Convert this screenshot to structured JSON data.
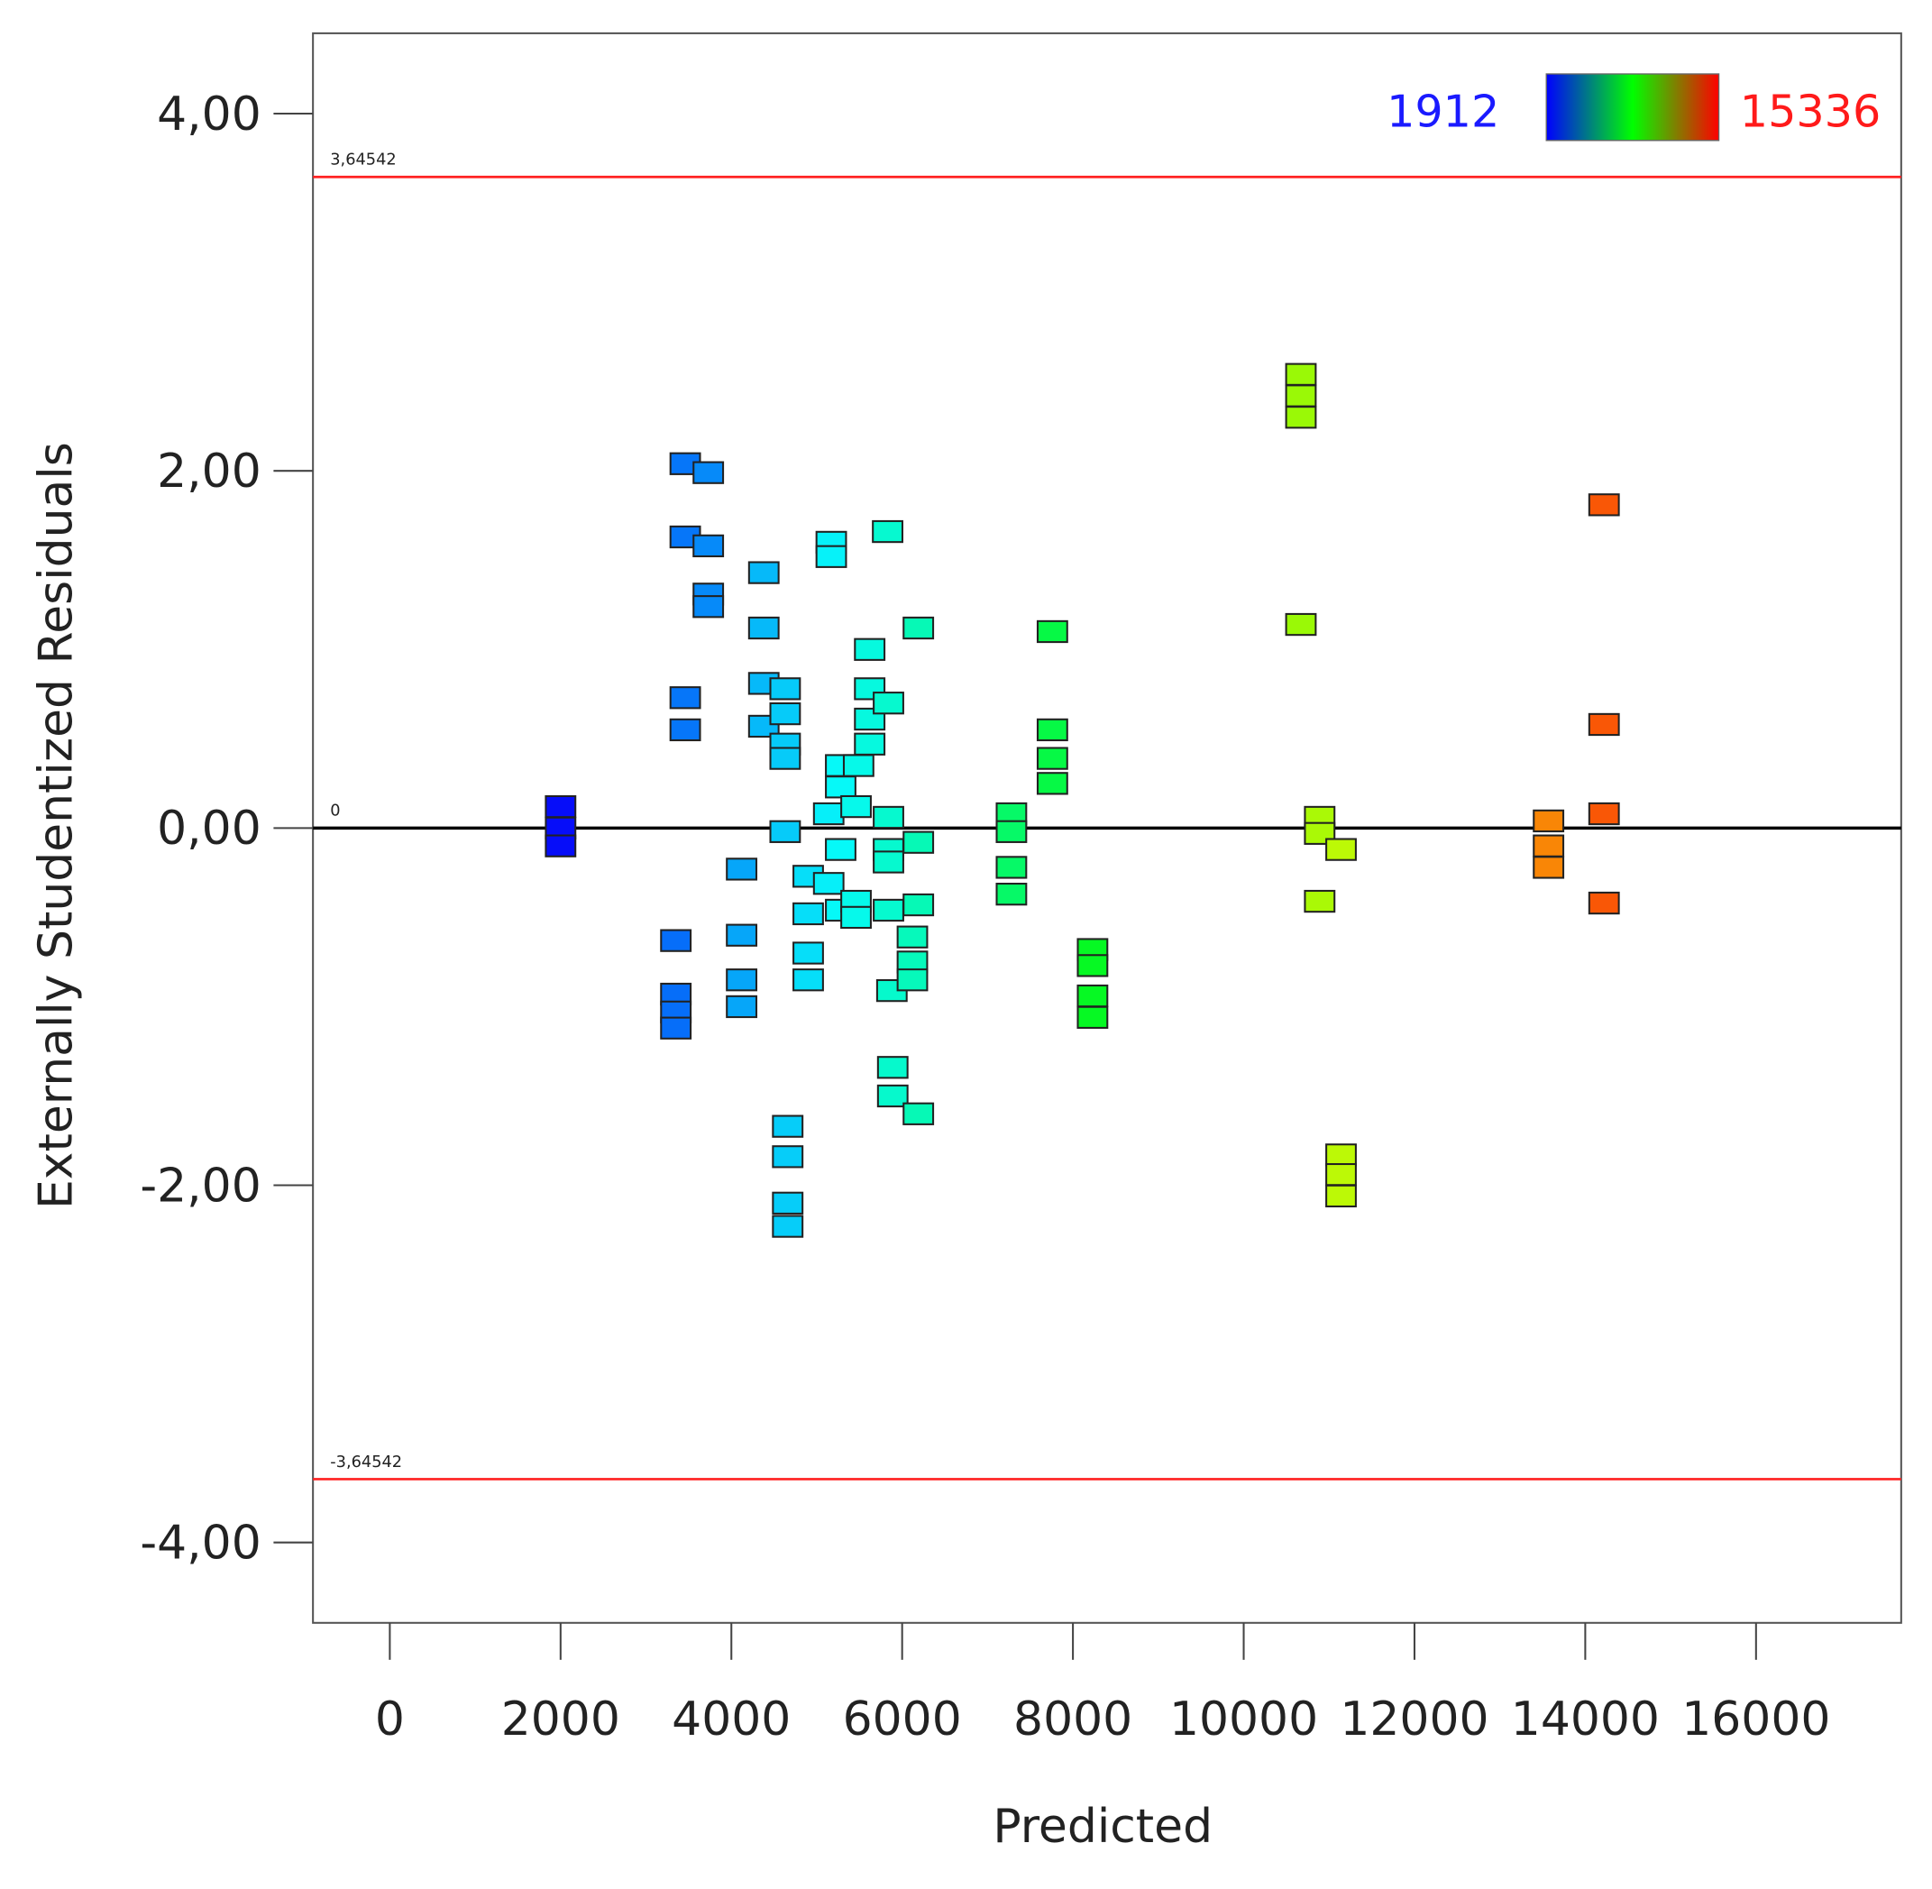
{
  "chart_data": {
    "type": "scatter",
    "title": "",
    "xlabel": "Predicted",
    "ylabel": "Externally Studentized Residuals",
    "xlim": [
      -900,
      17700
    ],
    "ylim": [
      -4.45,
      4.45
    ],
    "x_ticks": [
      0,
      2000,
      4000,
      6000,
      8000,
      10000,
      12000,
      14000,
      16000
    ],
    "x_tick_labels": [
      "0",
      "2000",
      "4000",
      "6000",
      "8000",
      "10000",
      "12000",
      "14000",
      "16000"
    ],
    "y_ticks": [
      4,
      2,
      0,
      -2,
      -4
    ],
    "y_tick_labels": [
      "4,00",
      "2,00",
      "0,00",
      "-2,00",
      "-4,00"
    ],
    "grid": false,
    "marker": "square",
    "reference_lines": [
      {
        "value": 3.64542,
        "label": "3,64542",
        "color": "#ff2020"
      },
      {
        "value": 0,
        "label": "0",
        "color": "#000000"
      },
      {
        "value": -3.64542,
        "label": "-3,64542",
        "color": "#ff2020"
      }
    ],
    "color_scale": {
      "min_label": "1912",
      "max_label": "15336",
      "min": 1912,
      "max": 15336,
      "colors": [
        "#0000ff",
        "#00ff00",
        "#ff0000"
      ],
      "min_color": "#1a1aff",
      "max_color": "#ff1a1a",
      "placement": "top-right"
    },
    "points": [
      [
        2000,
        0.12
      ],
      [
        2000,
        0
      ],
      [
        2000,
        -0.1
      ],
      [
        3460,
        2.04
      ],
      [
        3730,
        1.99
      ],
      [
        3460,
        1.63
      ],
      [
        3730,
        1.58
      ],
      [
        3730,
        1.31
      ],
      [
        3730,
        1.24
      ],
      [
        3460,
        0.73
      ],
      [
        3460,
        0.55
      ],
      [
        3350,
        -0.63
      ],
      [
        3350,
        -0.93
      ],
      [
        3350,
        -1.03
      ],
      [
        3350,
        -1.12
      ],
      [
        4120,
        -0.23
      ],
      [
        4120,
        -0.6
      ],
      [
        4120,
        -0.85
      ],
      [
        4120,
        -1.0
      ],
      [
        4380,
        1.43
      ],
      [
        4380,
        1.12
      ],
      [
        4380,
        0.81
      ],
      [
        4380,
        0.57
      ],
      [
        4630,
        0.78
      ],
      [
        4630,
        0.64
      ],
      [
        4630,
        0.47
      ],
      [
        4630,
        0.39
      ],
      [
        4630,
        -0.02
      ],
      [
        4660,
        -1.67
      ],
      [
        4660,
        -1.84
      ],
      [
        4660,
        -2.1
      ],
      [
        4660,
        -2.23
      ],
      [
        4900,
        -0.27
      ],
      [
        4900,
        -0.48
      ],
      [
        4900,
        -0.7
      ],
      [
        4900,
        -0.85
      ],
      [
        5170,
        1.6
      ],
      [
        5170,
        1.52
      ],
      [
        5140,
        0.08
      ],
      [
        5140,
        -0.31
      ],
      [
        5280,
        0.35
      ],
      [
        5280,
        0.23
      ],
      [
        5280,
        -0.12
      ],
      [
        5280,
        -0.46
      ],
      [
        5460,
        0.12
      ],
      [
        5460,
        -0.41
      ],
      [
        5460,
        -0.5
      ],
      [
        5490,
        0.35
      ],
      [
        5620,
        1.0
      ],
      [
        5620,
        0.78
      ],
      [
        5620,
        0.61
      ],
      [
        5620,
        0.47
      ],
      [
        5830,
        1.66
      ],
      [
        5840,
        0.7
      ],
      [
        5840,
        0.06
      ],
      [
        5840,
        -0.12
      ],
      [
        5840,
        -0.19
      ],
      [
        5840,
        -0.46
      ],
      [
        5880,
        -0.91
      ],
      [
        5890,
        -1.34
      ],
      [
        5890,
        -1.5
      ],
      [
        6190,
        1.12
      ],
      [
        6190,
        -0.08
      ],
      [
        6190,
        -0.43
      ],
      [
        6120,
        -0.61
      ],
      [
        6120,
        -0.75
      ],
      [
        6120,
        -0.85
      ],
      [
        6190,
        -1.6
      ],
      [
        7280,
        0.08
      ],
      [
        7280,
        -0.02
      ],
      [
        7280,
        -0.22
      ],
      [
        7280,
        -0.37
      ],
      [
        7760,
        1.1
      ],
      [
        7760,
        0.55
      ],
      [
        7760,
        0.39
      ],
      [
        7760,
        0.25
      ],
      [
        8230,
        -0.68
      ],
      [
        8230,
        -0.77
      ],
      [
        8230,
        -0.94
      ],
      [
        8230,
        -1.06
      ],
      [
        10670,
        2.54
      ],
      [
        10670,
        2.42
      ],
      [
        10670,
        2.3
      ],
      [
        10670,
        1.14
      ],
      [
        10890,
        0.06
      ],
      [
        10890,
        -0.03
      ],
      [
        10890,
        -0.41
      ],
      [
        11140,
        -0.12
      ],
      [
        11140,
        -1.83
      ],
      [
        11140,
        -1.94
      ],
      [
        11140,
        -2.06
      ],
      [
        13570,
        0.04
      ],
      [
        13570,
        -0.1
      ],
      [
        13570,
        -0.22
      ],
      [
        14220,
        1.81
      ],
      [
        14220,
        0.58
      ],
      [
        14220,
        0.08
      ],
      [
        14220,
        -0.42
      ]
    ]
  }
}
